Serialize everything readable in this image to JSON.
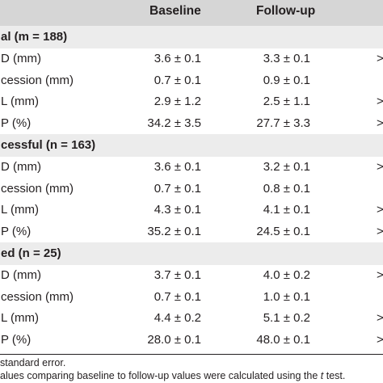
{
  "columns": {
    "baseline": "Baseline",
    "followup": "Follow-up"
  },
  "sections": [
    {
      "title": "al (m = 188)",
      "rows": [
        {
          "label": "D (mm)",
          "baseline": "3.6 ± 0.1",
          "followup": "3.3 ± 0.1",
          "p": ">"
        },
        {
          "label": "cession (mm)",
          "baseline": "0.7 ± 0.1",
          "followup": "0.9 ± 0.1",
          "p": ""
        },
        {
          "label": "L (mm)",
          "baseline": "2.9 ± 1.2",
          "followup": "2.5 ± 1.1",
          "p": ">"
        },
        {
          "label": "P (%)",
          "baseline": "34.2 ± 3.5",
          "followup": "27.7 ± 3.3",
          "p": ">"
        }
      ]
    },
    {
      "title": "cessful (n = 163)",
      "rows": [
        {
          "label": "D (mm)",
          "baseline": "3.6 ± 0.1",
          "followup": "3.2 ± 0.1",
          "p": ">"
        },
        {
          "label": "cession (mm)",
          "baseline": "0.7 ± 0.1",
          "followup": "0.8 ± 0.1",
          "p": ""
        },
        {
          "label": "L (mm)",
          "baseline": "4.3 ± 0.1",
          "followup": "4.1 ± 0.1",
          "p": ">"
        },
        {
          "label": "P (%)",
          "baseline": "35.2 ± 0.1",
          "followup": "24.5 ± 0.1",
          "p": ">"
        }
      ]
    },
    {
      "title": "ed (n = 25)",
      "rows": [
        {
          "label": "D (mm)",
          "baseline": "3.7 ± 0.1",
          "followup": "4.0 ± 0.2",
          "p": ">"
        },
        {
          "label": "cession (mm)",
          "baseline": "0.7 ± 0.1",
          "followup": "1.0 ± 0.1",
          "p": ""
        },
        {
          "label": "L (mm)",
          "baseline": "4.4 ± 0.2",
          "followup": "5.1 ± 0.2",
          "p": ">"
        },
        {
          "label": "P (%)",
          "baseline": "28.0 ± 0.1",
          "followup": "48.0 ± 0.1",
          "p": ">"
        }
      ]
    }
  ],
  "footnotes": {
    "line1": "standard error.",
    "line2_pre": "alues comparing baseline to follow-up values were calculated using the ",
    "line2_italic": "t",
    "line2_post": " test."
  }
}
